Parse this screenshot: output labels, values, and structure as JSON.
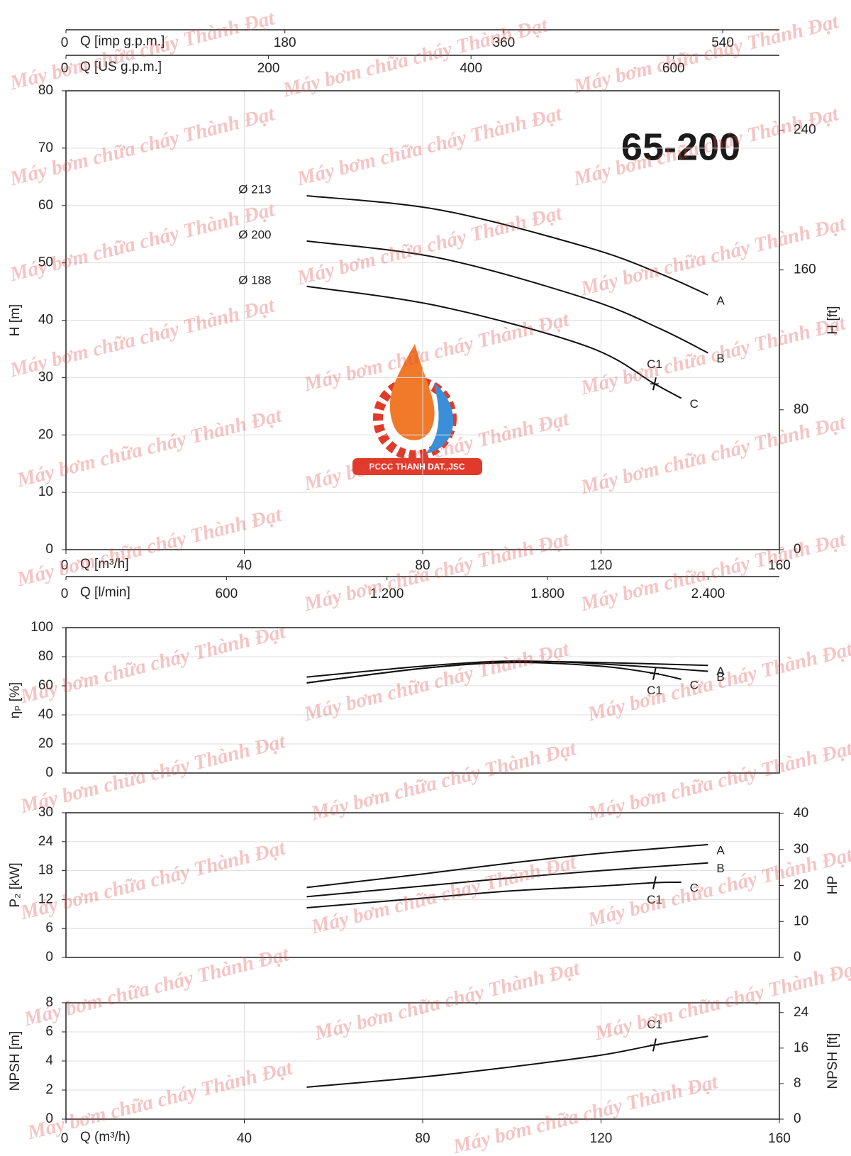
{
  "watermark": "Máy bơm chữa cháy Thành Đạt",
  "logo_text": "PCCC THANH DAT.,JSC",
  "chart_data": [
    {
      "type": "line",
      "title": "65-200",
      "xlim": [
        0,
        160
      ],
      "xticks": [
        0,
        40,
        80,
        120,
        160
      ],
      "x_label": "Q [m³/h]",
      "ylim": [
        0,
        80
      ],
      "yticks": [
        0,
        10,
        20,
        30,
        40,
        50,
        60,
        70,
        80
      ],
      "y_label": "H [m]",
      "y2lim": [
        0,
        262.5
      ],
      "y2ticks": [
        0,
        80,
        160,
        240
      ],
      "y2_label": "H [ft]",
      "grid": true,
      "x_axes": [
        {
          "label": "Q [imp g.p.m.]",
          "position": "top",
          "lim": [
            0,
            586.6
          ],
          "ticks": [
            0,
            180,
            360,
            540
          ]
        },
        {
          "label": "Q [US g.p.m.]",
          "position": "top",
          "lim": [
            0,
            704.5
          ],
          "ticks": [
            0,
            200,
            400,
            600
          ]
        },
        {
          "label": "Q [l/min]",
          "position": "bottom",
          "lim": [
            0,
            2666.7
          ],
          "ticks": [
            0,
            600,
            {
              "value": 1200,
              "label": "1.200"
            },
            {
              "value": 1800,
              "label": "1.800"
            },
            {
              "value": 2400,
              "label": "2.400"
            }
          ]
        }
      ],
      "series": [
        {
          "name": "A",
          "diameter": "Ø 213",
          "color": "#111111",
          "x": [
            54,
            84,
            117,
            133,
            144
          ],
          "values": [
            61.7,
            59.2,
            52.7,
            48.2,
            44.4
          ]
        },
        {
          "name": "B",
          "diameter": "Ø 200",
          "color": "#111111",
          "x": [
            54,
            84,
            117,
            133,
            144
          ],
          "values": [
            53.8,
            50.8,
            43.7,
            38.6,
            34.3
          ]
        },
        {
          "name": "C",
          "diameter": "Ø 188",
          "color": "#111111",
          "x": [
            54,
            84,
            117,
            132,
            138
          ],
          "values": [
            45.9,
            42.4,
            35.4,
            28.9,
            26.4
          ]
        }
      ],
      "points": [
        {
          "label": "C1",
          "x": 132,
          "y": 28.9
        }
      ]
    },
    {
      "type": "line",
      "xlim": [
        0,
        160
      ],
      "ylim": [
        0,
        100
      ],
      "yticks": [
        0,
        20,
        40,
        60,
        80,
        100
      ],
      "y_label": "ηₚ [%]",
      "grid": true,
      "series": [
        {
          "name": "A",
          "color": "#111111",
          "x": [
            54,
            80,
            100,
            120,
            144
          ],
          "values": [
            62,
            72,
            76.5,
            76,
            74
          ]
        },
        {
          "name": "B",
          "color": "#111111",
          "x": [
            54,
            80,
            100,
            120,
            144
          ],
          "values": [
            66,
            73.5,
            77,
            75,
            70
          ]
        },
        {
          "name": "C",
          "color": "#111111",
          "x": [
            54,
            80,
            100,
            120,
            132,
            138
          ],
          "values": [
            62,
            72,
            76,
            73.5,
            68.5,
            64.5
          ]
        }
      ],
      "points": [
        {
          "label": "C1",
          "x": 132,
          "y": 68.5
        }
      ]
    },
    {
      "type": "line",
      "xlim": [
        0,
        160
      ],
      "ylim": [
        0,
        30
      ],
      "yticks": [
        0,
        6,
        12,
        18,
        24,
        30
      ],
      "y_label": "P₂ [kW]",
      "y2lim": [
        0,
        40.2
      ],
      "y2ticks": [
        0,
        10,
        20,
        30,
        40
      ],
      "y2_label": "HP",
      "grid": true,
      "series": [
        {
          "name": "A",
          "color": "#111111",
          "x": [
            54,
            80,
            100,
            120,
            144
          ],
          "values": [
            14.5,
            17.3,
            19.6,
            21.6,
            23.4
          ]
        },
        {
          "name": "B",
          "color": "#111111",
          "x": [
            54,
            80,
            100,
            120,
            144
          ],
          "values": [
            12.6,
            14.8,
            16.5,
            18.0,
            19.6
          ]
        },
        {
          "name": "C",
          "color": "#111111",
          "x": [
            54,
            80,
            100,
            120,
            132,
            138
          ],
          "values": [
            10.3,
            12.3,
            13.8,
            14.8,
            15.5,
            15.6
          ]
        }
      ],
      "points": [
        {
          "label": "C1",
          "x": 132,
          "y": 15.5
        }
      ]
    },
    {
      "type": "line",
      "xlim": [
        0,
        160
      ],
      "xticks": [
        0,
        40,
        80,
        120,
        160
      ],
      "x_label": "Q (m³/h)",
      "ylim": [
        0,
        8
      ],
      "yticks": [
        0,
        2,
        4,
        6,
        8
      ],
      "y_label": "NPSH [m]",
      "y2lim": [
        0,
        26.2
      ],
      "y2ticks": [
        0,
        8,
        16,
        24
      ],
      "y2_label": "NPSH [ft]",
      "grid": true,
      "series": [
        {
          "color": "#111111",
          "x": [
            54,
            80,
            100,
            120,
            132,
            144
          ],
          "values": [
            2.2,
            2.9,
            3.6,
            4.4,
            5.1,
            5.7
          ]
        }
      ],
      "points": [
        {
          "label": "C1",
          "x": 132,
          "y": 5.1
        }
      ]
    }
  ]
}
